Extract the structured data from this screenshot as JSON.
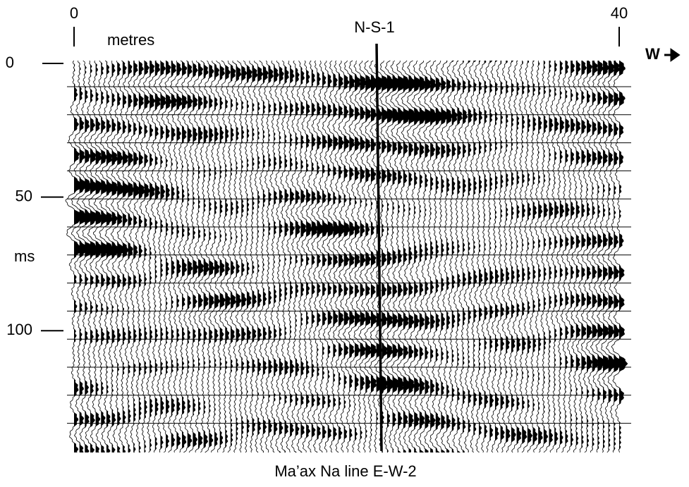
{
  "chart_data": {
    "type": "seismic",
    "title": "Ma’ax Na line E-W-2",
    "x_label": "metres",
    "y_label": "ms",
    "xlim": [
      0,
      40
    ],
    "xticks": [
      0,
      40
    ],
    "ylim": [
      0,
      145
    ],
    "yticks": [
      0,
      50,
      100
    ],
    "well": {
      "label": "N-S-1",
      "x": 22.2
    },
    "direction": "W"
  }
}
